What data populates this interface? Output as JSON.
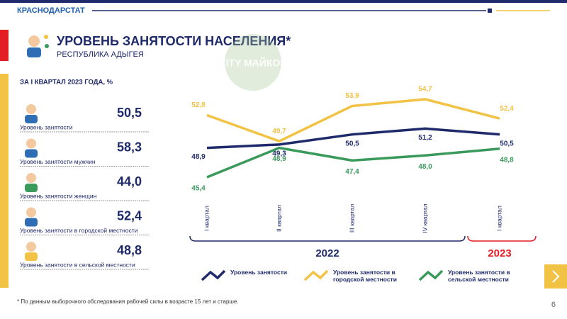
{
  "header": {
    "brand": "КРАСНОДАРСТАТ",
    "title": "УРОВЕНЬ ЗАНЯТОСТИ НАСЕЛЕНИЯ*",
    "subtitle": "РЕСПУБЛИКА АДЫГЕЯ",
    "watermark": "CITY МАЙКОП"
  },
  "left_panel": {
    "heading": "ЗА I КВАРТАЛ 2023 ГОДА, %",
    "items": [
      {
        "label": "Уровень занятости",
        "value": "50,5"
      },
      {
        "label": "Уровень занятости мужчин",
        "value": "58,3"
      },
      {
        "label": "Уровень занятости женщин",
        "value": "44,0"
      },
      {
        "label": "Уровень занятости в городской местности",
        "value": "52,4"
      },
      {
        "label": "Уровень занятости в сельской местности",
        "value": "48,8"
      }
    ]
  },
  "chart_data": {
    "type": "line",
    "categories": [
      "I квартал",
      "II квартал",
      "III квартал",
      "IV квартал",
      "I квартал"
    ],
    "periods": [
      "2022",
      "2023"
    ],
    "series": [
      {
        "name": "Уровень занятости",
        "color": "#1f2a6b",
        "values": [
          48.9,
          49.3,
          50.5,
          51.2,
          50.5
        ],
        "value_labels": [
          "48,9",
          "49,3",
          "50,5",
          "51,2",
          "50,5"
        ]
      },
      {
        "name": "Уровень занятости в городской местности",
        "color": "#f2c244",
        "values": [
          52.8,
          49.7,
          53.9,
          54.7,
          52.4
        ],
        "value_labels": [
          "52,8",
          "49,7",
          "53,9",
          "54,7",
          "52,4"
        ]
      },
      {
        "name": "Уровень занятости в сельской местности",
        "color": "#3a9a5b",
        "values": [
          45.4,
          48.9,
          47.4,
          48.0,
          48.8
        ],
        "value_labels": [
          "45,4",
          "48,9",
          "47,4",
          "48,0",
          "48,8"
        ]
      }
    ]
  },
  "footnote": "* По данным выборочного обследования рабочей силы в возрасте 15 лет и старше.",
  "page_number": "6"
}
